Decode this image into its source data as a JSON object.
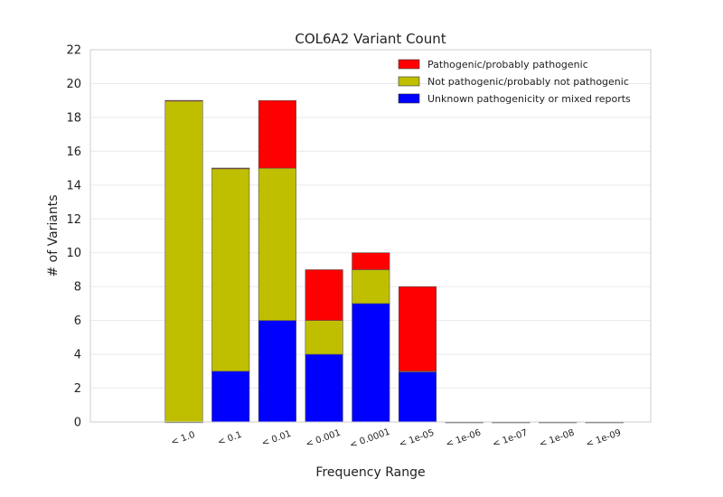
{
  "chart_data": {
    "type": "bar",
    "stacked": true,
    "title": "COL6A2 Variant Count",
    "xlabel": "Frequency Range",
    "ylabel": "# of Variants",
    "ylim": [
      0,
      22
    ],
    "yticks": [
      0,
      2,
      4,
      6,
      8,
      10,
      12,
      14,
      16,
      18,
      20,
      22
    ],
    "grid": true,
    "legend_position": "top-right",
    "categories": [
      "< 1.0",
      "< 0.1",
      "< 0.01",
      "< 0.001",
      "< 0.0001",
      "< 1e-05",
      "< 1e-06",
      "< 1e-07",
      "< 1e-08",
      "< 1e-09"
    ],
    "series": [
      {
        "name": "Unknown pathogenicity or mixed reports",
        "color": "#0000ff",
        "values": [
          0,
          3,
          6,
          4,
          7,
          3,
          0,
          0,
          0,
          0
        ]
      },
      {
        "name": "Not pathogenic/probably not pathogenic",
        "color": "#bfbf00",
        "values": [
          19,
          12,
          9,
          2,
          2,
          0,
          0,
          0,
          0,
          0
        ]
      },
      {
        "name": "Pathogenic/probably pathogenic",
        "color": "#ff0000",
        "values": [
          0,
          0,
          4,
          3,
          1,
          5,
          0,
          0,
          0,
          0
        ]
      }
    ],
    "legend_order": [
      "Pathogenic/probably pathogenic",
      "Not pathogenic/probably not pathogenic",
      "Unknown pathogenicity or mixed reports"
    ]
  }
}
